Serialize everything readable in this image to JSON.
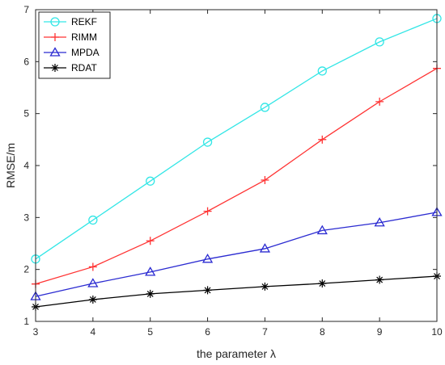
{
  "chart_data": {
    "type": "line",
    "title": "",
    "xlabel": "the parameter λ",
    "ylabel": "RMSE/m",
    "x": [
      3,
      4,
      5,
      6,
      7,
      8,
      9,
      10
    ],
    "xlim": [
      3,
      10
    ],
    "ylim": [
      1,
      7
    ],
    "xticks": [
      "3",
      "4",
      "5",
      "6",
      "7",
      "8",
      "9",
      "10"
    ],
    "yticks": [
      "1",
      "2",
      "3",
      "4",
      "5",
      "6",
      "7"
    ],
    "grid": false,
    "legend_position": "top-left",
    "series": [
      {
        "name": "REKF",
        "color": "#33e6e6",
        "marker": "circle",
        "values": [
          2.2,
          2.95,
          3.7,
          4.45,
          5.12,
          5.82,
          6.38,
          6.83
        ]
      },
      {
        "name": "RIMM",
        "color": "#ff3333",
        "marker": "plus",
        "values": [
          1.72,
          2.05,
          2.55,
          3.12,
          3.72,
          4.5,
          5.23,
          5.87
        ]
      },
      {
        "name": "MPDA",
        "color": "#2b2bd1",
        "marker": "triangle",
        "values": [
          1.48,
          1.73,
          1.95,
          2.2,
          2.4,
          2.75,
          2.9,
          3.1
        ]
      },
      {
        "name": "RDAT",
        "color": "#000000",
        "marker": "star",
        "values": [
          1.28,
          1.42,
          1.53,
          1.6,
          1.67,
          1.73,
          1.8,
          1.87
        ]
      }
    ]
  }
}
